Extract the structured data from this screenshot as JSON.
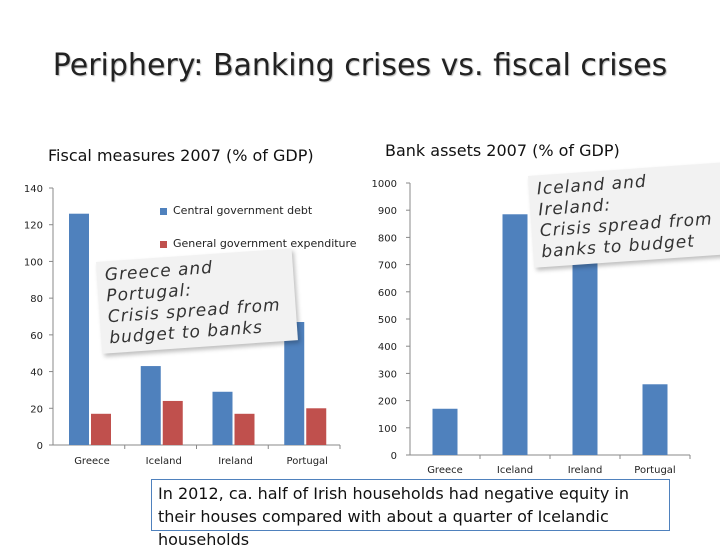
{
  "title": "Periphery: Banking crises vs. fiscal crises",
  "colors": {
    "blue": "#4f81bd",
    "red": "#c0504d"
  },
  "chart_data": [
    {
      "type": "bar",
      "title": "Fiscal measures 2007 (% of GDP)",
      "categories": [
        "Greece",
        "Iceland",
        "Ireland",
        "Portugal"
      ],
      "series": [
        {
          "name": "Central government debt",
          "values": [
            126,
            43,
            29,
            67
          ]
        },
        {
          "name": "General government expenditure",
          "values": [
            17,
            24,
            17,
            20
          ]
        }
      ],
      "ylim": [
        0,
        140
      ],
      "yticks": [
        0,
        20,
        40,
        60,
        80,
        100,
        120,
        140
      ],
      "legend_position": "top-right",
      "annotation": [
        "Greece and Portugal:",
        "Crisis spread from",
        "budget to banks"
      ]
    },
    {
      "type": "bar",
      "title": "Bank assets 2007 (% of GDP)",
      "categories": [
        "Greece",
        "Iceland",
        "Ireland",
        "Portugal"
      ],
      "series": [
        {
          "values": [
            170,
            885,
            705,
            260
          ]
        }
      ],
      "ylim": [
        0,
        1000
      ],
      "yticks": [
        0,
        100,
        200,
        300,
        400,
        500,
        600,
        700,
        800,
        900,
        1000
      ],
      "annotation": [
        "Iceland and Ireland:",
        "Crisis spread from",
        "banks to budget"
      ]
    }
  ],
  "footnote": "In 2012, ca. half of Irish households had negative equity in their houses compared with about a quarter of Icelandic households"
}
